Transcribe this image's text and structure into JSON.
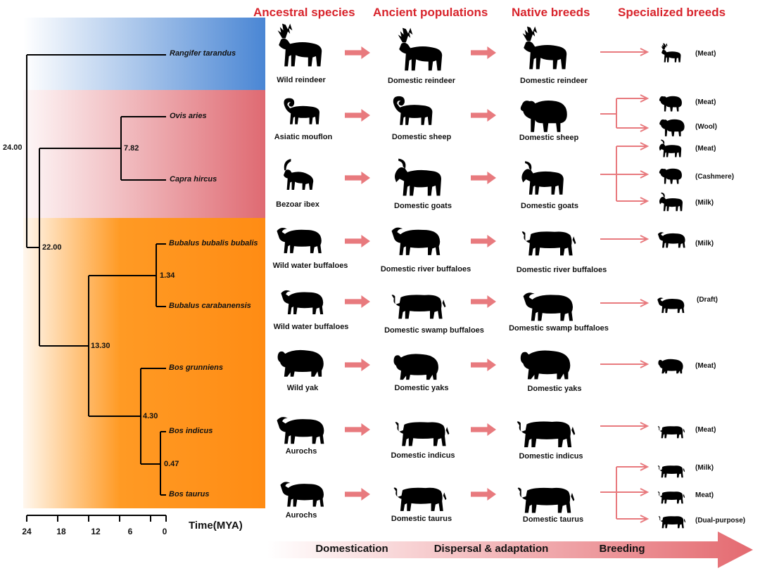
{
  "headers": {
    "ancestral": "Ancestral species",
    "ancient": "Ancient populations",
    "native": "Native breeds",
    "specialized": "Specialized breeds"
  },
  "tree": {
    "species": {
      "rangifer": "Rangifer tarandus",
      "ovis": "Ovis aries",
      "capra": "Capra hircus",
      "bubalus_b": "Bubalus bubalis bubalis",
      "bubalus_c": "Bubalus carabanensis",
      "bos_g": "Bos grunniens",
      "bos_i": "Bos indicus",
      "bos_t": "Bos taurus"
    },
    "nodes": {
      "root": "24.00",
      "n22": "22.00",
      "n782": "7.82",
      "n1330": "13.30",
      "n134": "1.34",
      "n430": "4.30",
      "n047": "0.47"
    },
    "axis": {
      "title": "Time(MYA)",
      "ticks": [
        "24",
        "18",
        "12",
        "6",
        "0"
      ]
    }
  },
  "rows": {
    "reindeer": {
      "ancestral": "Wild reindeer",
      "ancient": "Domestic reindeer",
      "native": "Domestic reindeer",
      "uses": [
        "(Meat)"
      ]
    },
    "sheep": {
      "ancestral": "Asiatic mouflon",
      "ancient": "Domestic sheep",
      "native": "Domestic sheep",
      "uses": [
        "(Meat)",
        "(Wool)"
      ]
    },
    "goat": {
      "ancestral": "Bezoar ibex",
      "ancient": "Domestic goats",
      "native": "Domestic goats",
      "uses": [
        "(Meat)",
        "(Cashmere)",
        "(Milk)"
      ]
    },
    "river_buffalo": {
      "ancestral": "Wild water buffaloes",
      "ancient": "Domestic river buffaloes",
      "native": "Domestic river buffaloes",
      "uses": [
        "(Milk)"
      ]
    },
    "swamp_buffalo": {
      "ancestral": "Wild water buffaloes",
      "ancient": "Domestic swamp buffaloes",
      "native": "Domestic swamp buffaloes",
      "uses": [
        "(Draft)"
      ]
    },
    "yak": {
      "ancestral": "Wild yak",
      "ancient": "Domestic yaks",
      "native": "Domestic yaks",
      "uses": [
        "(Meat)"
      ]
    },
    "indicus": {
      "ancestral": "Aurochs",
      "ancient": "Domestic indicus",
      "native": "Domestic indicus",
      "uses": [
        "(Meat)"
      ]
    },
    "taurus": {
      "ancestral": "Aurochs",
      "ancient": "Domestic taurus",
      "native": "Domestic taurus",
      "uses": [
        "(Milk)",
        "Meat)",
        "(Dual-purpose)"
      ]
    }
  },
  "stages": {
    "domestication": "Domestication",
    "dispersal": "Dispersal & adaptation",
    "breeding": "Breeding"
  },
  "colors": {
    "header_red": "#d8242c",
    "arrow_pink": "#e87a7e",
    "band_blue": "#4a86d4",
    "band_red": "#df6a72",
    "band_orange": "#ff9a24"
  }
}
